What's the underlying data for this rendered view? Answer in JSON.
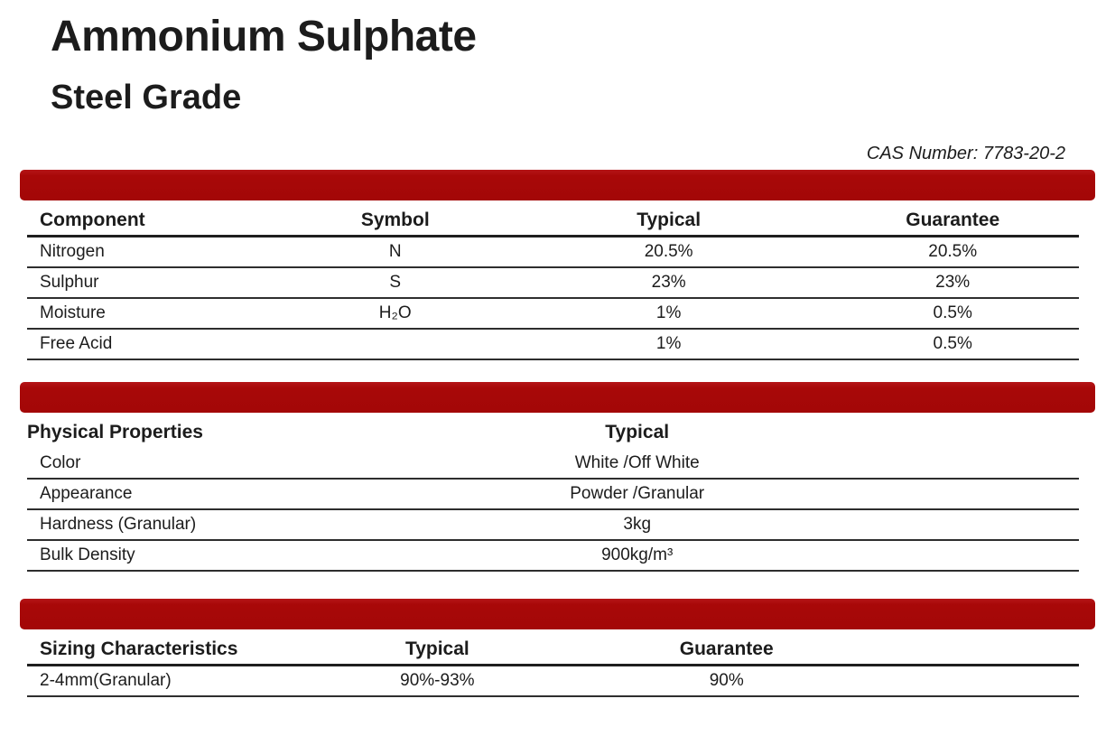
{
  "header": {
    "title": "Ammonium Sulphate",
    "subtitle": "Steel Grade",
    "cas_number": "CAS Number: 7783-20-2"
  },
  "colors": {
    "accent_bar": "#A80808",
    "text": "#1C1C1C",
    "background": "#FFFFFF"
  },
  "tables": {
    "composition": {
      "headers": [
        "Component",
        "Symbol",
        "Typical",
        "Guarantee"
      ],
      "rows": [
        [
          "Nitrogen",
          "N",
          "20.5%",
          "20.5%"
        ],
        [
          "Sulphur",
          "S",
          "23%",
          "23%"
        ],
        [
          "Moisture",
          "H₂O",
          "1%",
          "0.5%"
        ],
        [
          "Free Acid",
          "",
          "1%",
          "0.5%"
        ]
      ]
    },
    "physical_properties": {
      "headers": [
        "Physical Properties",
        "Typical"
      ],
      "rows": [
        [
          "Color",
          "White /Off White"
        ],
        [
          "Appearance",
          "Powder /Granular"
        ],
        [
          "Hardness (Granular)",
          "3kg"
        ],
        [
          "Bulk Density",
          "900kg/m³"
        ]
      ]
    },
    "sizing": {
      "headers": [
        "Sizing Characteristics",
        "Typical",
        "Guarantee"
      ],
      "rows": [
        [
          "2-4mm(Granular)",
          "90%-93%",
          "90%"
        ]
      ]
    }
  }
}
